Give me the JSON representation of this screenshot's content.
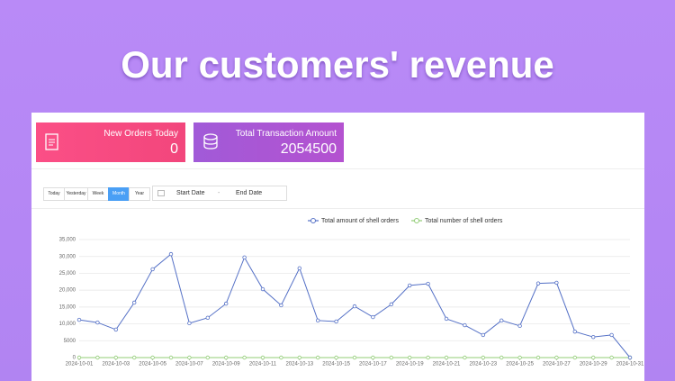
{
  "header": {
    "title": "Our customers' revenue"
  },
  "cards": [
    {
      "label": "New Orders Today",
      "value": 0
    },
    {
      "label": "Total Transaction Amount",
      "value": 2054500
    }
  ],
  "filters": {
    "periods": [
      "Today",
      "Yesterday",
      "Week",
      "Month",
      "Year"
    ],
    "active_index": 3,
    "date_range": {
      "start": "Start Date",
      "separator": "-",
      "end": "End Date"
    }
  },
  "chart_data": {
    "type": "line",
    "categories": [
      "2024-10-01",
      null,
      "2024-10-03",
      null,
      "2024-10-05",
      null,
      "2024-10-07",
      null,
      "2024-10-09",
      null,
      "2024-10-11",
      null,
      "2024-10-13",
      null,
      "2024-10-15",
      null,
      "2024-10-17",
      null,
      "2024-10-19",
      null,
      "2024-10-21",
      null,
      "2024-10-23",
      null,
      "2024-10-25",
      null,
      "2024-10-27",
      null,
      "2024-10-29",
      null,
      "2024-10-31"
    ],
    "series": [
      {
        "name": "Total amount of shell orders",
        "color": "#5470c6",
        "values": [
          11200,
          10400,
          8300,
          16300,
          26200,
          30700,
          10200,
          11800,
          16000,
          29700,
          20300,
          15500,
          26500,
          11000,
          10700,
          15200,
          12000,
          15800,
          21400,
          21900,
          11500,
          9600,
          6700,
          11000,
          9400,
          22000,
          22200,
          7700,
          6100,
          6700,
          0
        ]
      },
      {
        "name": "Total number of shell orders",
        "color": "#91cc75",
        "values": [
          0,
          0,
          0,
          0,
          0,
          0,
          0,
          0,
          0,
          0,
          0,
          0,
          0,
          0,
          0,
          0,
          0,
          0,
          0,
          0,
          0,
          0,
          0,
          0,
          0,
          0,
          0,
          0,
          0,
          0,
          0
        ]
      }
    ],
    "ylim": [
      0,
      35000
    ],
    "yticks": [
      0,
      5000,
      {
        "value": 10000,
        "label": "10,000"
      },
      {
        "value": 15000,
        "label": "15,000"
      },
      {
        "value": 20000,
        "label": "20,000"
      },
      {
        "value": 25000,
        "label": "25,000"
      },
      {
        "value": 30000,
        "label": "30,000"
      },
      {
        "value": 35000,
        "label": "35,000"
      }
    ],
    "grid": true
  }
}
